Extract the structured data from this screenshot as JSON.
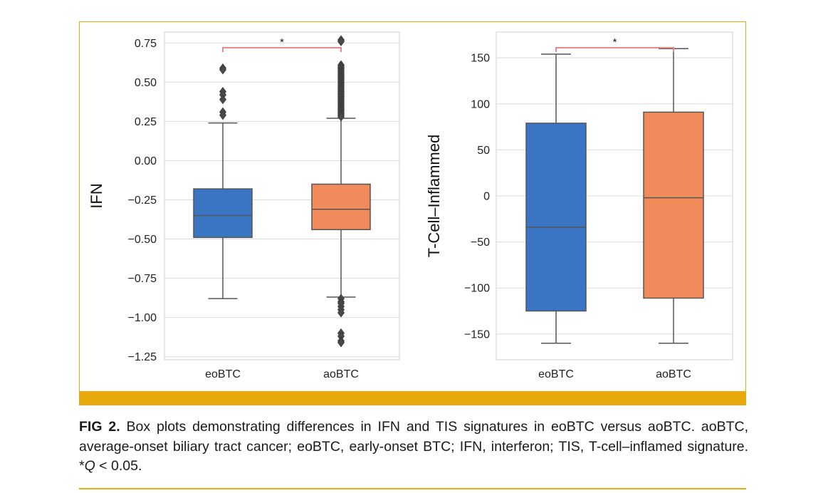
{
  "figure": {
    "accent_color": "#E8A90C",
    "caption": {
      "label": "FIG 2.",
      "text_1": " Box plots demonstrating differences in IFN and TIS signatures in eoBTC versus aoBTC. aoBTC, average-onset biliary tract cancer; eoBTC, early-onset BTC; IFN, interferon; TIS, T-cell–inflamed signature. *",
      "q_symbol": "Q",
      "text_2": " < 0.05."
    }
  },
  "chart_data": [
    {
      "type": "box",
      "title": "",
      "xlabel": "",
      "ylabel": "IFN",
      "categories": [
        "eoBTC",
        "aoBTC"
      ],
      "colors": [
        "#3A75C4",
        "#F28B5B"
      ],
      "ylim": [
        -1.27,
        0.82
      ],
      "yticks": [
        0.75,
        0.5,
        0.25,
        0.0,
        -0.25,
        -0.5,
        -0.75,
        -1.0,
        -1.25
      ],
      "ytick_labels": [
        "0.75",
        "0.50",
        "0.25",
        "0.00",
        "−0.25",
        "−0.50",
        "−0.75",
        "−1.00",
        "−1.25"
      ],
      "grid": true,
      "boxes": [
        {
          "name": "eoBTC",
          "whisker_low": -0.88,
          "q1": -0.49,
          "median": -0.35,
          "q3": -0.18,
          "whisker_high": 0.24,
          "outliers": [
            0.59,
            0.58,
            0.44,
            0.42,
            0.39,
            0.31,
            0.29
          ]
        },
        {
          "name": "aoBTC",
          "whisker_low": -0.87,
          "q1": -0.44,
          "median": -0.31,
          "q3": -0.15,
          "whisker_high": 0.27,
          "outliers": [
            0.77,
            0.76,
            0.61,
            0.6,
            0.59,
            0.58,
            0.57,
            0.56,
            0.55,
            0.54,
            0.53,
            0.52,
            0.51,
            0.5,
            0.49,
            0.48,
            0.47,
            0.46,
            0.45,
            0.44,
            0.43,
            0.42,
            0.41,
            0.4,
            0.39,
            0.38,
            0.37,
            0.36,
            0.35,
            0.34,
            0.33,
            0.32,
            0.31,
            0.3,
            0.29,
            0.28,
            -0.88,
            -0.9,
            -0.91,
            -0.93,
            -0.95,
            -0.97,
            -1.1,
            -1.12,
            -1.15,
            -1.16
          ]
        }
      ],
      "significance": {
        "label": "*",
        "between": [
          "eoBTC",
          "aoBTC"
        ],
        "y": 0.84,
        "color": "#E88A8A"
      }
    },
    {
      "type": "box",
      "title": "",
      "xlabel": "",
      "ylabel": "T-Cell–Inflammed",
      "categories": [
        "eoBTC",
        "aoBTC"
      ],
      "colors": [
        "#3A75C4",
        "#F28B5B"
      ],
      "ylim": [
        -178,
        178
      ],
      "yticks": [
        150,
        100,
        50,
        0,
        -50,
        -100,
        -150
      ],
      "ytick_labels": [
        "150",
        "100",
        "50",
        "0",
        "−50",
        "−100",
        "−150"
      ],
      "grid": true,
      "boxes": [
        {
          "name": "eoBTC",
          "whisker_low": -160,
          "q1": -125,
          "median": -34,
          "q3": 79,
          "whisker_high": 154,
          "outliers": []
        },
        {
          "name": "aoBTC",
          "whisker_low": -160,
          "q1": -111,
          "median": -2,
          "q3": 91,
          "whisker_high": 160,
          "outliers": []
        }
      ],
      "significance": {
        "label": "*",
        "between": [
          "eoBTC",
          "aoBTC"
        ],
        "y": 176,
        "color": "#E88A8A"
      }
    }
  ]
}
